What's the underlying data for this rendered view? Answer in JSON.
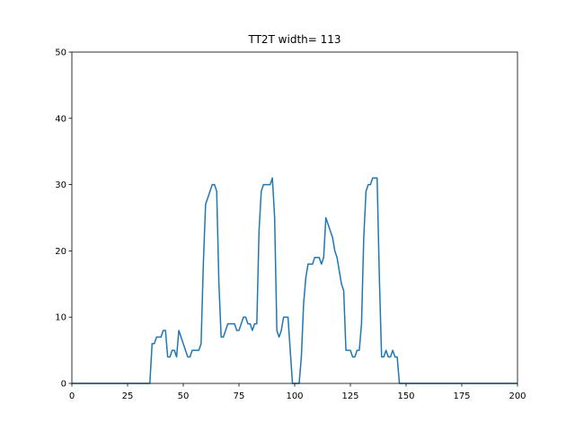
{
  "chart_data": {
    "type": "line",
    "title": "TT2T width= 113",
    "color": "#1f77b4",
    "x": [
      0,
      35,
      36,
      37,
      38,
      40,
      41,
      42,
      43,
      44,
      45,
      46,
      47,
      48,
      49,
      50,
      51,
      52,
      53,
      54,
      57,
      58,
      59,
      60,
      61,
      62,
      63,
      64,
      65,
      66,
      67,
      68,
      69,
      70,
      73,
      74,
      75,
      76,
      77,
      78,
      79,
      80,
      81,
      82,
      83,
      84,
      85,
      86,
      89,
      90,
      91,
      92,
      93,
      94,
      95,
      97,
      98,
      99,
      102,
      103,
      104,
      105,
      106,
      108,
      109,
      111,
      112,
      113,
      114,
      115,
      116,
      117,
      118,
      119,
      120,
      121,
      122,
      123,
      125,
      126,
      127,
      128,
      129,
      130,
      131,
      132,
      133,
      134,
      135,
      137,
      138,
      139,
      140,
      141,
      142,
      143,
      144,
      145,
      146,
      147,
      200
    ],
    "values": [
      0,
      0,
      6,
      6,
      7,
      7,
      8,
      8,
      4,
      4,
      5,
      5,
      4,
      8,
      7,
      6,
      5,
      4,
      4,
      5,
      5,
      6,
      18,
      27,
      28,
      29,
      30,
      30,
      29,
      15,
      7,
      7,
      8,
      9,
      9,
      8,
      8,
      9,
      10,
      10,
      9,
      9,
      8,
      9,
      9,
      23,
      29,
      30,
      30,
      31,
      25,
      8,
      7,
      8,
      10,
      10,
      5,
      0,
      0,
      4,
      12,
      16,
      18,
      18,
      19,
      19,
      18,
      19,
      25,
      24,
      23,
      22,
      20,
      19,
      17,
      15,
      14,
      5,
      5,
      4,
      4,
      5,
      5,
      9,
      22,
      29,
      30,
      30,
      31,
      31,
      16,
      4,
      4,
      5,
      4,
      4,
      5,
      4,
      4,
      0,
      0
    ],
    "xlim": [
      0,
      200
    ],
    "ylim": [
      0,
      50
    ],
    "xticks": [
      0,
      25,
      50,
      75,
      100,
      125,
      150,
      175,
      200
    ],
    "yticks": [
      0,
      10,
      20,
      30,
      40,
      50
    ]
  }
}
